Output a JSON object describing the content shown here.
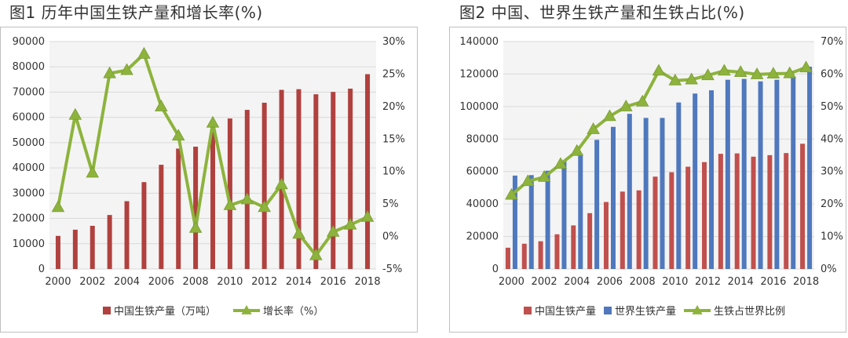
{
  "charts": {
    "left": {
      "title": "图1 历年中国生铁产量和增长率(%)"
    },
    "right": {
      "title": "图2 中国、世界生铁产量和生铁占比(%)"
    }
  },
  "chart_data": [
    {
      "type": "bar+line",
      "title": "图1 历年中国生铁产量和增长率(%)",
      "categories": [
        2000,
        2001,
        2002,
        2003,
        2004,
        2005,
        2006,
        2007,
        2008,
        2009,
        2010,
        2011,
        2012,
        2013,
        2014,
        2015,
        2016,
        2017,
        2018
      ],
      "x_tick_labels": [
        "2000",
        "2002",
        "2004",
        "2006",
        "2008",
        "2010",
        "2012",
        "2014",
        "2016",
        "2018"
      ],
      "series": [
        {
          "name": "中国生铁产量（万吨）",
          "type": "bar",
          "axis": "left",
          "color": "#b0413e",
          "values": [
            13100,
            15554,
            17085,
            21367,
            26831,
            34375,
            41245,
            47652,
            48406,
            56863,
            59560,
            62969,
            65791,
            70897,
            71160,
            69141,
            70074,
            71362,
            77105
          ]
        },
        {
          "name": "增长率（%）",
          "type": "line",
          "axis": "right",
          "color": "#8db33c",
          "values": [
            4.5,
            18.7,
            9.8,
            25.1,
            25.6,
            28.1,
            20.0,
            15.5,
            1.3,
            17.5,
            4.8,
            5.7,
            4.5,
            8.0,
            0.4,
            -2.9,
            0.7,
            1.8,
            3.0
          ]
        }
      ],
      "ylim_left": [
        0,
        90000
      ],
      "yticks_left": [
        "0",
        "10000",
        "20000",
        "30000",
        "40000",
        "50000",
        "60000",
        "70000",
        "80000",
        "90000"
      ],
      "ylim_right": [
        -5,
        30
      ],
      "yticks_right": [
        "-5%",
        "0%",
        "5%",
        "10%",
        "15%",
        "20%",
        "25%",
        "30%"
      ],
      "legend_position": "bottom"
    },
    {
      "type": "bar+line",
      "title": "图2 中国、世界生铁产量和生铁占比(%)",
      "categories": [
        2000,
        2001,
        2002,
        2003,
        2004,
        2005,
        2006,
        2007,
        2008,
        2009,
        2010,
        2011,
        2012,
        2013,
        2014,
        2015,
        2016,
        2017,
        2018
      ],
      "x_tick_labels": [
        "2000",
        "2002",
        "2004",
        "2006",
        "2008",
        "2010",
        "2012",
        "2014",
        "2016",
        "2018"
      ],
      "series": [
        {
          "name": "中国生铁产量",
          "type": "bar",
          "axis": "left",
          "color": "#c0504d",
          "values": [
            13100,
            15554,
            17085,
            21367,
            26831,
            34375,
            41245,
            47652,
            48406,
            56863,
            59560,
            62969,
            65791,
            70897,
            71160,
            69141,
            70074,
            71362,
            77105
          ]
        },
        {
          "name": "世界生铁产量",
          "type": "bar",
          "axis": "left",
          "color": "#4f78bd",
          "values": [
            57500,
            57800,
            60500,
            66800,
            71000,
            79500,
            87500,
            95500,
            93000,
            93000,
            102500,
            108000,
            110000,
            116500,
            117000,
            115500,
            116500,
            118500,
            124500
          ]
        },
        {
          "name": "生铁占世界比例",
          "type": "line",
          "axis": "right",
          "color": "#8db33c",
          "values": [
            22.8,
            27.0,
            28.3,
            32.3,
            36.3,
            43.0,
            47.0,
            50.0,
            51.5,
            61.0,
            58.0,
            58.3,
            59.6,
            61.0,
            60.6,
            59.9,
            60.1,
            60.2,
            62.0
          ]
        }
      ],
      "ylim_left": [
        0,
        140000
      ],
      "yticks_left": [
        "0",
        "20000",
        "40000",
        "60000",
        "80000",
        "100000",
        "120000",
        "140000"
      ],
      "ylim_right": [
        0,
        70
      ],
      "yticks_right": [
        "0%",
        "10%",
        "20%",
        "30%",
        "40%",
        "50%",
        "60%",
        "70%"
      ],
      "legend_position": "bottom"
    }
  ]
}
